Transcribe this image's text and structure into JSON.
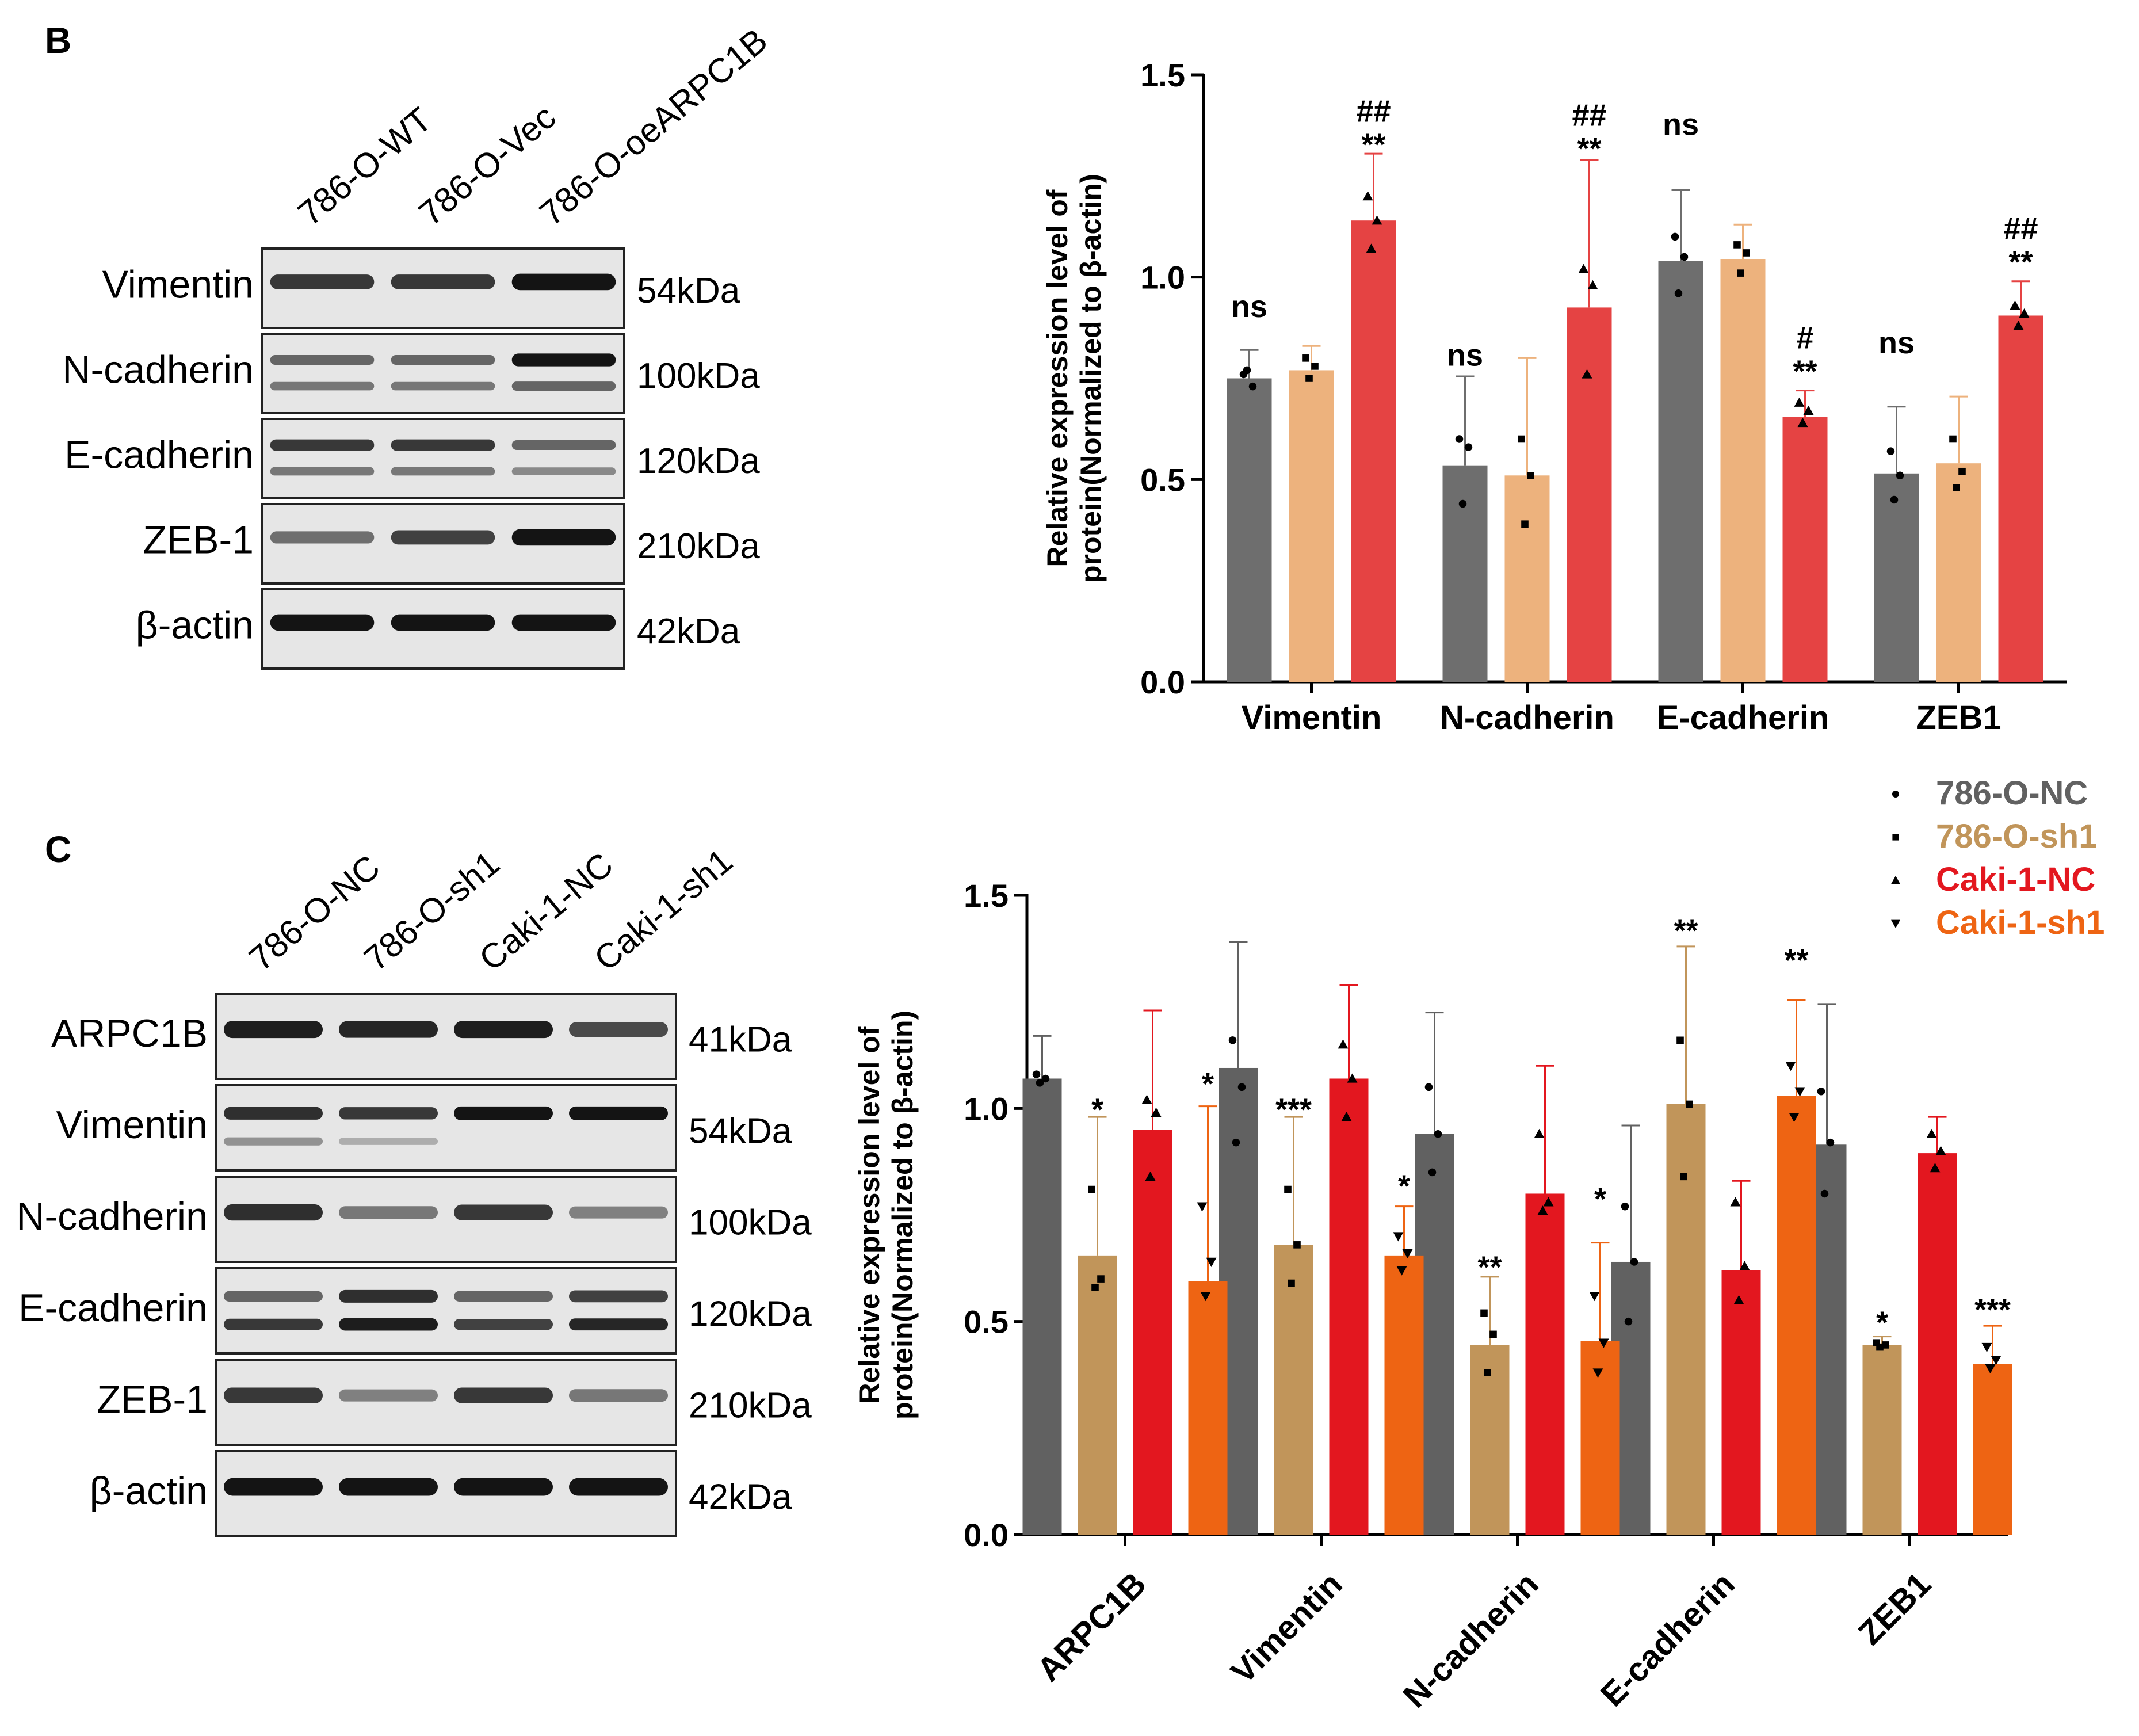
{
  "panelB": {
    "letter": "B",
    "lanes": [
      "786-O-WT",
      "786-O-Vec",
      "786-O-oeARPC1B"
    ],
    "blots": [
      {
        "protein": "Vimentin",
        "kda": "54kDa",
        "bands": [
          0.8,
          0.8,
          1.0
        ],
        "band2": null
      },
      {
        "protein": "N-cadherin",
        "kda": "100kDa",
        "bands": [
          0.55,
          0.55,
          1.0
        ],
        "band2": [
          0.45,
          0.45,
          0.55
        ]
      },
      {
        "protein": "E-cadherin",
        "kda": "120kDa",
        "bands": [
          0.8,
          0.8,
          0.55
        ],
        "band2": [
          0.45,
          0.45,
          0.35
        ]
      },
      {
        "protein": "ZEB-1",
        "kda": "210kDa",
        "bands": [
          0.5,
          0.75,
          1.0
        ],
        "band2": null
      },
      {
        "protein": "β-actin",
        "kda": "42kDa",
        "bands": [
          1.0,
          1.0,
          1.0
        ],
        "band2": null
      }
    ]
  },
  "panelC": {
    "letter": "C",
    "lanes": [
      "786-O-NC",
      "786-O-sh1",
      "Caki-1-NC",
      "Caki-1-sh1"
    ],
    "blots": [
      {
        "protein": "ARPC1B",
        "kda": "41kDa",
        "bands": [
          0.95,
          0.9,
          0.95,
          0.7
        ],
        "band2": null
      },
      {
        "protein": "Vimentin",
        "kda": "54kDa",
        "bands": [
          0.85,
          0.8,
          1.0,
          1.0
        ],
        "band2": [
          0.3,
          0.15,
          0.0,
          0.0
        ]
      },
      {
        "protein": "N-cadherin",
        "kda": "100kDa",
        "bands": [
          0.85,
          0.45,
          0.8,
          0.4
        ],
        "band2": null
      },
      {
        "protein": "E-cadherin",
        "kda": "120kDa",
        "bands": [
          0.55,
          0.85,
          0.55,
          0.75
        ],
        "band2": [
          0.8,
          0.95,
          0.75,
          0.9
        ]
      },
      {
        "protein": "ZEB-1",
        "kda": "210kDa",
        "bands": [
          0.8,
          0.4,
          0.8,
          0.45
        ],
        "band2": null
      },
      {
        "protein": "β-actin",
        "kda": "42kDa",
        "bands": [
          1.0,
          1.0,
          1.0,
          1.0
        ],
        "band2": null
      }
    ]
  },
  "legend": [
    {
      "name": "786-O-NC",
      "color": "#616161",
      "marker": "circle"
    },
    {
      "name": "786-O-sh1",
      "color": "#C1955A",
      "marker": "square"
    },
    {
      "name": "Caki-1-NC",
      "color": "#E3171F",
      "marker": "triangle-up"
    },
    {
      "name": "Caki-1-sh1",
      "color": "#EE6413",
      "marker": "triangle-down"
    }
  ],
  "chart_data": [
    {
      "type": "bar",
      "panel": "B",
      "ylabel_line1": "Relative expression level of",
      "ylabel_line2": "protein(Normalized to β-actin)",
      "ylim": [
        0,
        1.5
      ],
      "yticks": [
        "0.0",
        "0.5",
        "1.0",
        "1.5"
      ],
      "categories": [
        "Vimentin",
        "N-cadherin",
        "E-cadherin",
        "ZEB1"
      ],
      "series": [
        {
          "name": "786-O-WT",
          "color": "#6E6E6E",
          "marker": "circle",
          "values": [
            0.75,
            0.535,
            1.04,
            0.515
          ],
          "errors": [
            0.07,
            0.22,
            0.175,
            0.165
          ],
          "points": [
            [
              0.76,
              0.73,
              0.77
            ],
            [
              0.6,
              0.58,
              0.44
            ],
            [
              1.1,
              1.05,
              0.96
            ],
            [
              0.57,
              0.51,
              0.45
            ]
          ]
        },
        {
          "name": "786-O-Vec",
          "color": "#EDB27D",
          "marker": "square",
          "values": [
            0.77,
            0.51,
            1.045,
            0.54
          ],
          "errors": [
            0.06,
            0.29,
            0.085,
            0.165
          ],
          "points": [
            [
              0.8,
              0.78,
              0.75
            ],
            [
              0.6,
              0.51,
              0.39
            ],
            [
              1.08,
              1.06,
              1.01
            ],
            [
              0.6,
              0.52,
              0.48
            ]
          ]
        },
        {
          "name": "786-O-oeARPC1B",
          "color": "#E54343",
          "marker": "triangle-up",
          "values": [
            1.14,
            0.925,
            0.655,
            0.905
          ],
          "errors": [
            0.165,
            0.365,
            0.065,
            0.085
          ],
          "points": [
            [
              1.2,
              1.14,
              1.07
            ],
            [
              1.02,
              0.98,
              0.76
            ],
            [
              0.69,
              0.67,
              0.64
            ],
            [
              0.93,
              0.91,
              0.88
            ]
          ]
        }
      ],
      "annotations": [
        {
          "cat": 0,
          "series": 0,
          "y": 0.93,
          "lines": [
            "ns"
          ]
        },
        {
          "cat": 0,
          "series": 2,
          "y": 1.33,
          "lines": [
            "##",
            "**"
          ]
        },
        {
          "cat": 1,
          "series": 0,
          "y": 0.81,
          "lines": [
            "ns"
          ]
        },
        {
          "cat": 1,
          "series": 2,
          "y": 1.32,
          "lines": [
            "##",
            "**"
          ]
        },
        {
          "cat": 2,
          "series": 0,
          "y": 1.38,
          "lines": [
            "ns"
          ]
        },
        {
          "cat": 2,
          "series": 2,
          "y": 0.77,
          "lines": [
            "#",
            "**"
          ]
        },
        {
          "cat": 3,
          "series": 0,
          "y": 0.84,
          "lines": [
            "ns"
          ]
        },
        {
          "cat": 3,
          "series": 2,
          "y": 1.04,
          "lines": [
            "##",
            "**"
          ]
        }
      ]
    },
    {
      "type": "bar",
      "panel": "C",
      "ylabel_line1": "Relative expression level of",
      "ylabel_line2": "protein(Normalized to β-actin)",
      "ylim": [
        0,
        1.5
      ],
      "yticks": [
        "0.0",
        "0.5",
        "1.0",
        "1.5"
      ],
      "categories": [
        "ARPC1B",
        "Vimentin",
        "N-cadherin",
        "E-cadherin",
        "ZEB1"
      ],
      "series": [
        {
          "name": "786-O-NC",
          "color": "#616161",
          "marker": "circle",
          "values": [
            1.07,
            1.095,
            0.94,
            0.64,
            0.915
          ],
          "errors": [
            0.1,
            0.295,
            0.285,
            0.32,
            0.33
          ],
          "points": [
            [
              1.08,
              1.07,
              1.06
            ],
            [
              1.16,
              1.05,
              0.92
            ],
            [
              1.05,
              0.94,
              0.85
            ],
            [
              0.77,
              0.64,
              0.5
            ],
            [
              1.04,
              0.92,
              0.8
            ]
          ]
        },
        {
          "name": "786-O-sh1",
          "color": "#C1955A",
          "marker": "square",
          "values": [
            0.655,
            0.68,
            0.445,
            1.01,
            0.445
          ],
          "errors": [
            0.325,
            0.3,
            0.16,
            0.37,
            0.02
          ],
          "points": [
            [
              0.81,
              0.6,
              0.58
            ],
            [
              0.81,
              0.68,
              0.59
            ],
            [
              0.52,
              0.47,
              0.38
            ],
            [
              1.16,
              1.01,
              0.84
            ],
            [
              0.45,
              0.445,
              0.44
            ]
          ]
        },
        {
          "name": "Caki-1-NC",
          "color": "#E3171F",
          "marker": "triangle-up",
          "values": [
            0.95,
            1.07,
            0.8,
            0.62,
            0.895
          ],
          "errors": [
            0.28,
            0.22,
            0.3,
            0.21,
            0.085
          ],
          "points": [
            [
              1.02,
              0.99,
              0.84
            ],
            [
              1.15,
              1.07,
              0.98
            ],
            [
              0.94,
              0.78,
              0.76
            ],
            [
              0.78,
              0.63,
              0.55
            ],
            [
              0.94,
              0.9,
              0.86
            ]
          ]
        },
        {
          "name": "Caki-1-sh1",
          "color": "#EE6413",
          "marker": "triangle-down",
          "values": [
            0.595,
            0.655,
            0.455,
            1.03,
            0.4
          ],
          "errors": [
            0.41,
            0.115,
            0.23,
            0.225,
            0.09
          ],
          "points": [
            [
              0.77,
              0.64,
              0.56
            ],
            [
              0.7,
              0.66,
              0.62
            ],
            [
              0.56,
              0.45,
              0.38
            ],
            [
              1.1,
              1.04,
              0.98
            ],
            [
              0.44,
              0.41,
              0.39
            ]
          ]
        }
      ],
      "annotations": [
        {
          "cat": 0,
          "series": 1,
          "y": 1.0,
          "lines": [
            "*"
          ]
        },
        {
          "cat": 0,
          "series": 3,
          "y": 1.06,
          "lines": [
            "*"
          ]
        },
        {
          "cat": 1,
          "series": 1,
          "y": 1.0,
          "lines": [
            "***"
          ]
        },
        {
          "cat": 1,
          "series": 3,
          "y": 0.82,
          "lines": [
            "*"
          ]
        },
        {
          "cat": 2,
          "series": 1,
          "y": 0.63,
          "lines": [
            "**"
          ]
        },
        {
          "cat": 2,
          "series": 3,
          "y": 0.79,
          "lines": [
            "*"
          ]
        },
        {
          "cat": 3,
          "series": 1,
          "y": 1.42,
          "lines": [
            "**"
          ]
        },
        {
          "cat": 3,
          "series": 3,
          "y": 1.35,
          "lines": [
            "**"
          ]
        },
        {
          "cat": 4,
          "series": 1,
          "y": 0.5,
          "lines": [
            "*"
          ]
        },
        {
          "cat": 4,
          "series": 3,
          "y": 0.53,
          "lines": [
            "***"
          ]
        }
      ]
    }
  ]
}
